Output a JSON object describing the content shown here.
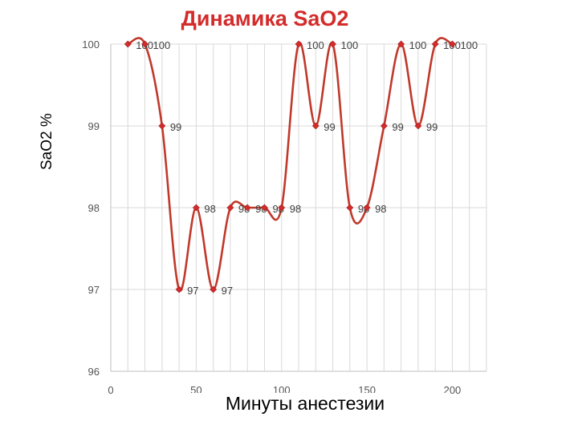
{
  "chart_data": {
    "type": "line",
    "title": "Динамика SaO2",
    "xlabel": "Минуты анестезии",
    "ylabel": "SaO2 %",
    "x": [
      10,
      20,
      30,
      40,
      50,
      60,
      70,
      80,
      90,
      100,
      110,
      120,
      130,
      140,
      150,
      160,
      170,
      180,
      190,
      200
    ],
    "series": [
      {
        "values": [
          100,
          100,
          99,
          97,
          98,
          97,
          98,
          98,
          98,
          98,
          100,
          99,
          100,
          98,
          98,
          99,
          100,
          99,
          100,
          100
        ]
      }
    ],
    "data_labels": [
      "100",
      "100",
      "99",
      "97",
      "98",
      "97",
      "98",
      "98",
      "98",
      "98",
      "100",
      "99",
      "100",
      "98",
      "98",
      "99",
      "100",
      "99",
      "100",
      "100"
    ],
    "xticks": [
      "0",
      "50",
      "100",
      "150",
      "200"
    ],
    "yticks": [
      "96",
      "97",
      "98",
      "99",
      "100"
    ],
    "xlim": [
      0,
      220
    ],
    "ylim": [
      96,
      100
    ],
    "smooth": true,
    "grid": true,
    "colors": {
      "line": "#c0392b",
      "marker": "#d42b2b",
      "title": "#d42b2b",
      "grid": "#d9d9d9"
    }
  }
}
